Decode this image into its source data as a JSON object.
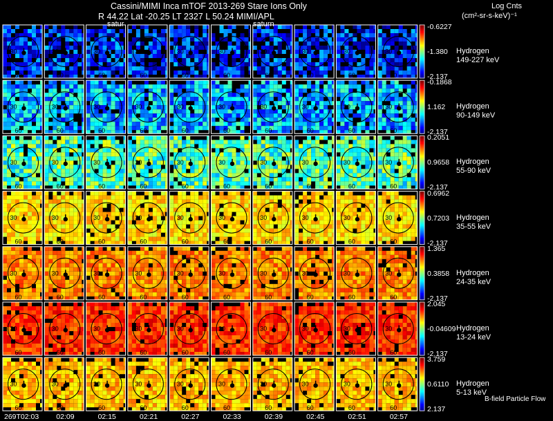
{
  "header": {
    "title": "Cassini/MIMI Inca mTOF  2013-269   Stare   Ions Only",
    "subtitle": "R      44.22 Lat -20.25 LT 2327 L       50.24  MIMI/APL",
    "units_line1": "Log Cnts",
    "units_line2": "(cm²-sr-s-keV)⁻¹",
    "saturn_tags": [
      "satur",
      "saturn"
    ]
  },
  "colors": {
    "background": "#000000",
    "frame": "#ffffff",
    "colormap": [
      "#000080",
      "#0000ff",
      "#0080ff",
      "#00ffff",
      "#80ff80",
      "#ffff00",
      "#ff8000",
      "#ff0000",
      "#800000"
    ]
  },
  "panels": {
    "circle_label": "30",
    "bottom_label": "60"
  },
  "rows": [
    {
      "species": "Hydrogen",
      "energy": "149-227 keV",
      "cmax": "-0.6227",
      "cmid": "-1.380",
      "cmin": "-2.137",
      "level": 0.16
    },
    {
      "species": "Hydrogen",
      "energy": "90-149 keV",
      "cmax": "-0.1868",
      "cmid": "1.162",
      "cmin": "-2.137",
      "level": 0.3
    },
    {
      "species": "Hydrogen",
      "energy": "55-90 keV",
      "cmax": "0.2051",
      "cmid": "0.9658",
      "cmin": "-2.137",
      "level": 0.45
    },
    {
      "species": "Hydrogen",
      "energy": "35-55 keV",
      "cmax": "0.6962",
      "cmid": "0.7203",
      "cmin": "-2.137",
      "level": 0.66
    },
    {
      "species": "Hydrogen",
      "energy": "24-35 keV",
      "cmax": "1.365",
      "cmid": "0.3858",
      "cmin": "-2.137",
      "level": 0.74
    },
    {
      "species": "Hydrogen",
      "energy": "13-24 keV",
      "cmax": "2.045",
      "cmid": "-0.04609",
      "cmin": "-2.137",
      "level": 0.83
    },
    {
      "species": "Hydrogen",
      "energy": "5-13 keV",
      "cmax": "3.759",
      "cmid": "0.6110",
      "cmin": "2.137",
      "level": 0.69
    }
  ],
  "times": [
    "269T02:03",
    "02:09",
    "02:15",
    "02:21",
    "02:27",
    "02:33",
    "02:39",
    "02:45",
    "02:51",
    "02:57"
  ],
  "footer": {
    "bfield_label": "B-field Particle Flow"
  }
}
